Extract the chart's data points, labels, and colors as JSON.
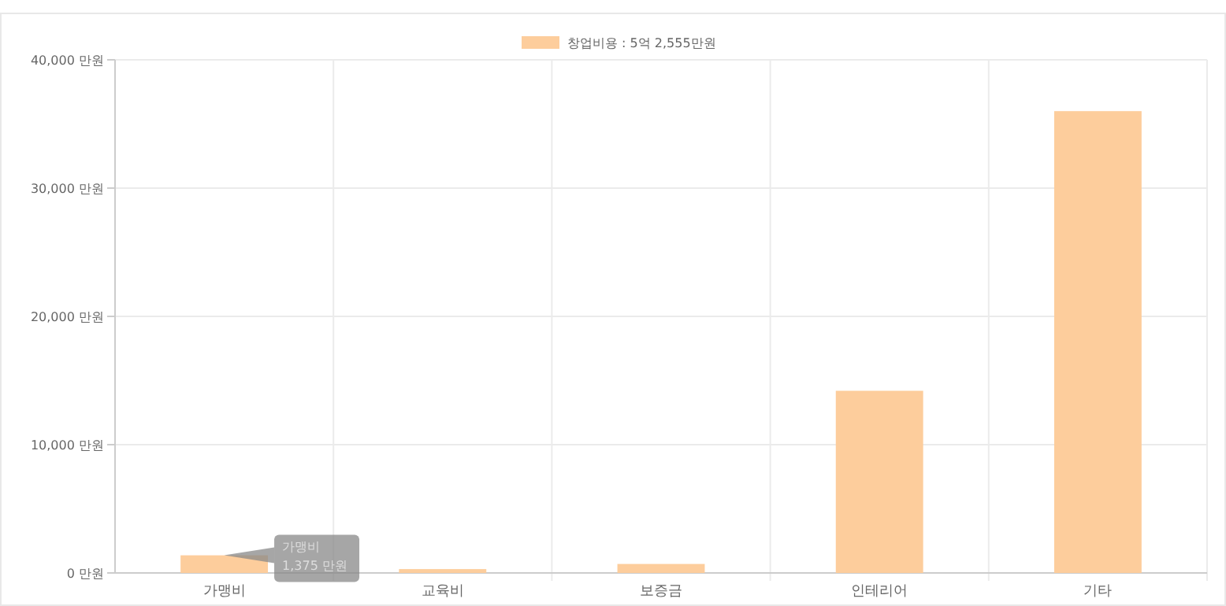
{
  "chart_data": {
    "type": "bar",
    "categories": [
      "가맹비",
      "교육비",
      "보증금",
      "인테리어",
      "기타"
    ],
    "series": [
      {
        "name": "창업비용 : 5억 2,555만원",
        "color": "#fdcd9c",
        "values": [
          1375,
          300,
          700,
          14200,
          36000
        ]
      }
    ],
    "ylim": [
      0,
      40000
    ],
    "yticks": [
      {
        "value": 0,
        "label": "0 만원"
      },
      {
        "value": 10000,
        "label": "10,000 만원"
      },
      {
        "value": 20000,
        "label": "20,000 만원"
      },
      {
        "value": 30000,
        "label": "30,000 만원"
      },
      {
        "value": 40000,
        "label": "40,000 만원"
      }
    ],
    "grid": true,
    "legend": "top",
    "annotations": [
      {
        "text": "가맹비\n1,375 만원",
        "x": "가맹비",
        "y": 1375
      }
    ]
  }
}
